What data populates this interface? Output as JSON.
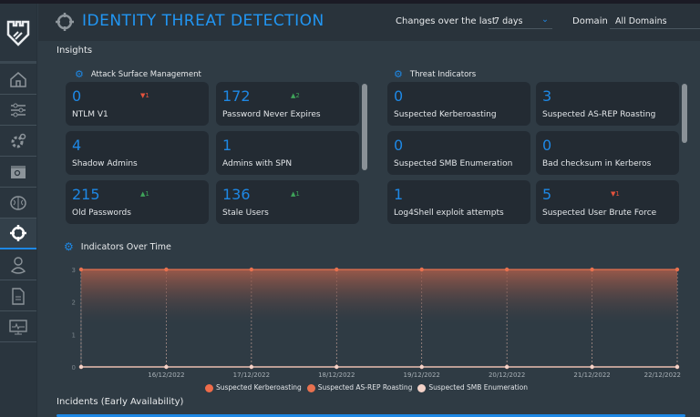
{
  "header": {
    "title": "IDENTITY THREAT DETECTION",
    "changes_label": "Changes over the last",
    "period": "7 days",
    "domain_label": "Domain",
    "domain": "All Domains"
  },
  "sidebar": {
    "items": [
      {
        "icon": "home-icon"
      },
      {
        "icon": "sliders-icon"
      },
      {
        "icon": "gear-icon"
      },
      {
        "icon": "search-window-icon"
      },
      {
        "icon": "brain-icon"
      },
      {
        "icon": "crosshair-icon",
        "active": true
      },
      {
        "icon": "user-icon"
      },
      {
        "icon": "document-icon"
      },
      {
        "icon": "monitor-icon"
      }
    ]
  },
  "insights": {
    "title": "Insights",
    "attack_surface": {
      "title": "Attack Surface Management",
      "cards": [
        {
          "value": "0",
          "label": "NTLM V1",
          "delta": "1",
          "trend": "down"
        },
        {
          "value": "172",
          "label": "Password Never Expires",
          "delta": "2",
          "trend": "up"
        },
        {
          "value": "4",
          "label": "Shadow Admins"
        },
        {
          "value": "1",
          "label": "Admins with SPN"
        },
        {
          "value": "215",
          "label": "Old Passwords",
          "delta": "1",
          "trend": "up"
        },
        {
          "value": "136",
          "label": "Stale Users",
          "delta": "1",
          "trend": "up"
        }
      ]
    },
    "threat_indicators": {
      "title": "Threat Indicators",
      "cards": [
        {
          "value": "0",
          "label": "Suspected Kerberoasting"
        },
        {
          "value": "3",
          "label": "Suspected AS-REP Roasting"
        },
        {
          "value": "0",
          "label": "Suspected SMB Enumeration"
        },
        {
          "value": "0",
          "label": "Bad checksum in Kerberos"
        },
        {
          "value": "1",
          "label": "Log4Shell exploit attempts"
        },
        {
          "value": "5",
          "label": "Suspected User Brute Force",
          "delta": "1",
          "trend": "down"
        }
      ]
    }
  },
  "indicators_title": "Indicators Over Time",
  "incidents_title": "Incidents (Early Availability)",
  "colors": {
    "accent": "#1e88e5",
    "up": "#3fa45a",
    "down": "#e5533d"
  },
  "chart_data": {
    "type": "area",
    "x": [
      "",
      "16/12/2022",
      "17/12/2022",
      "18/12/2022",
      "19/12/2022",
      "20/12/2022",
      "21/12/2022",
      "22/12/2022"
    ],
    "ylim": [
      0,
      3
    ],
    "yticks": [
      "0",
      "1",
      "2",
      "3"
    ],
    "legend_placement": "bottom",
    "series": [
      {
        "name": "Suspected Kerberoasting",
        "values": [
          0,
          0,
          0,
          0,
          0,
          0,
          0,
          0
        ],
        "color": "#ef6c4a"
      },
      {
        "name": "Suspected AS-REP Roasting",
        "values": [
          3,
          3,
          3,
          3,
          3,
          3,
          3,
          3
        ],
        "color": "#e8714f"
      },
      {
        "name": "Suspected SMB Enumeration",
        "values": [
          0,
          0,
          0,
          0,
          0,
          0,
          0,
          0
        ],
        "color": "#f3d2c8"
      }
    ]
  }
}
